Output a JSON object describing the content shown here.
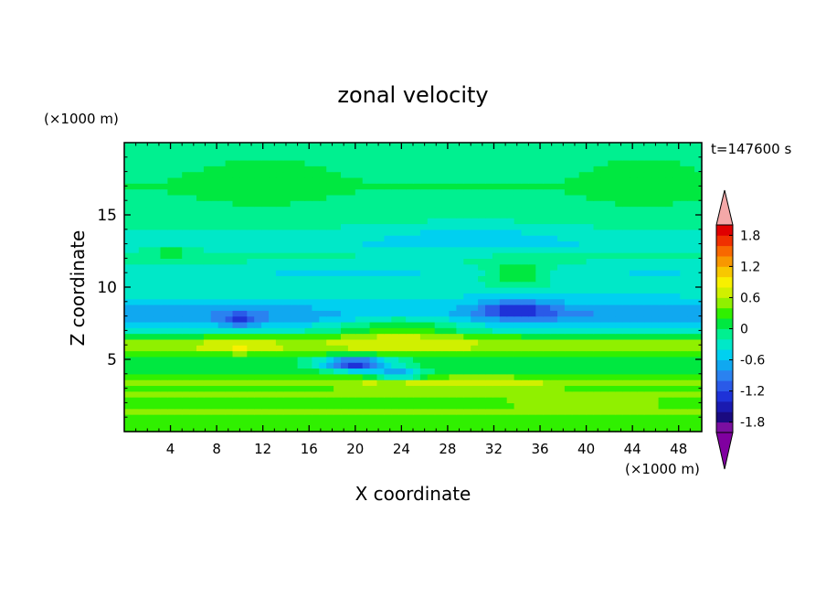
{
  "chart_data": {
    "type": "heatmap",
    "title": "zonal velocity",
    "xlabel": "X coordinate",
    "ylabel": "Z coordinate",
    "x_unit": "(×1000 m)",
    "z_unit": "(×1000 m)",
    "time_label": "t=147600 s",
    "xlim": [
      0,
      50
    ],
    "zlim": [
      0,
      20
    ],
    "x_ticks": [
      4,
      8,
      12,
      16,
      20,
      24,
      28,
      32,
      36,
      40,
      44,
      48
    ],
    "z_ticks": [
      5,
      10,
      15
    ],
    "colorbar": {
      "levels": [
        -2.0,
        -1.8,
        -1.6,
        -1.4,
        -1.2,
        -1.0,
        -0.8,
        -0.6,
        -0.4,
        -0.2,
        0.0,
        0.2,
        0.4,
        0.6,
        0.8,
        1.0,
        1.2,
        1.4,
        1.6,
        1.8,
        2.0
      ],
      "colors": [
        "#7a0fa0",
        "#1a0a80",
        "#1a1ab0",
        "#1e32d8",
        "#2a5ae8",
        "#2a82f0",
        "#10a8f0",
        "#00d0f0",
        "#00e8c8",
        "#00f090",
        "#00e840",
        "#30f000",
        "#90f000",
        "#d0f000",
        "#f8f000",
        "#f8c800",
        "#f89800",
        "#f86800",
        "#f03000",
        "#e00000"
      ],
      "under_color": "#8000a0",
      "over_color": "#f4a8a8",
      "tick_labels": [
        "1.8",
        "1.2",
        "0.6",
        "0",
        "-0.6",
        "-1.2",
        "-1.8"
      ],
      "tick_values": [
        1.8,
        1.2,
        0.6,
        0.0,
        -0.6,
        -1.2,
        -1.8
      ]
    },
    "base_profile": [
      {
        "z": 0.0,
        "u": 0.25
      },
      {
        "z": 1.0,
        "u": 0.3
      },
      {
        "z": 1.5,
        "u": 0.5
      },
      {
        "z": 2.0,
        "u": 0.2
      },
      {
        "z": 2.5,
        "u": 0.5
      },
      {
        "z": 3.0,
        "u": 0.3
      },
      {
        "z": 3.5,
        "u": 0.5
      },
      {
        "z": 4.0,
        "u": 0.2
      },
      {
        "z": 5.0,
        "u": 0.05
      },
      {
        "z": 5.5,
        "u": 0.4
      },
      {
        "z": 6.0,
        "u": 0.65
      },
      {
        "z": 6.5,
        "u": 0.3
      },
      {
        "z": 7.0,
        "u": -0.3
      },
      {
        "z": 8.0,
        "u": -0.85
      },
      {
        "z": 9.0,
        "u": -0.5
      },
      {
        "z": 10.0,
        "u": -0.25
      },
      {
        "z": 11.0,
        "u": -0.4
      },
      {
        "z": 12.0,
        "u": -0.15
      },
      {
        "z": 13.0,
        "u": -0.35
      },
      {
        "z": 14.0,
        "u": -0.2
      },
      {
        "z": 15.0,
        "u": -0.1
      },
      {
        "z": 17.0,
        "u": 0.0
      },
      {
        "z": 20.0,
        "u": -0.15
      }
    ],
    "features": [
      {
        "x": 20,
        "z": 4.7,
        "sx": 3.0,
        "sz": 0.55,
        "amp": -1.4
      },
      {
        "x": 24,
        "z": 4.0,
        "sx": 2.2,
        "sz": 0.4,
        "amp": -1.0
      },
      {
        "x": 34,
        "z": 8.5,
        "sx": 3.5,
        "sz": 0.6,
        "amp": -0.7
      },
      {
        "x": 10,
        "z": 7.8,
        "sx": 1.5,
        "sz": 0.5,
        "amp": -0.6
      },
      {
        "x": 24,
        "z": 7.3,
        "sx": 6.0,
        "sz": 1.2,
        "amp": 0.65
      },
      {
        "x": 34,
        "z": 11.0,
        "sx": 3.0,
        "sz": 0.8,
        "amp": 0.55
      },
      {
        "x": 28,
        "z": 3.2,
        "sx": 10.0,
        "sz": 0.6,
        "amp": 0.3
      },
      {
        "x": 40,
        "z": 2.0,
        "sx": 6.0,
        "sz": 0.5,
        "amp": 0.3
      },
      {
        "x": 4,
        "z": 12.5,
        "sx": 2.0,
        "sz": 0.4,
        "amp": 0.4
      },
      {
        "x": 10,
        "z": 6.0,
        "sx": 3.0,
        "sz": 0.5,
        "amp": 0.3
      },
      {
        "x": 30,
        "z": 13.5,
        "sx": 8.0,
        "sz": 1.0,
        "amp": -0.25
      },
      {
        "x": 12,
        "z": 17.5,
        "sx": 6.0,
        "sz": 2.0,
        "amp": 0.15
      },
      {
        "x": 45,
        "z": 17.5,
        "sx": 5.0,
        "sz": 2.0,
        "amp": 0.15
      }
    ]
  }
}
